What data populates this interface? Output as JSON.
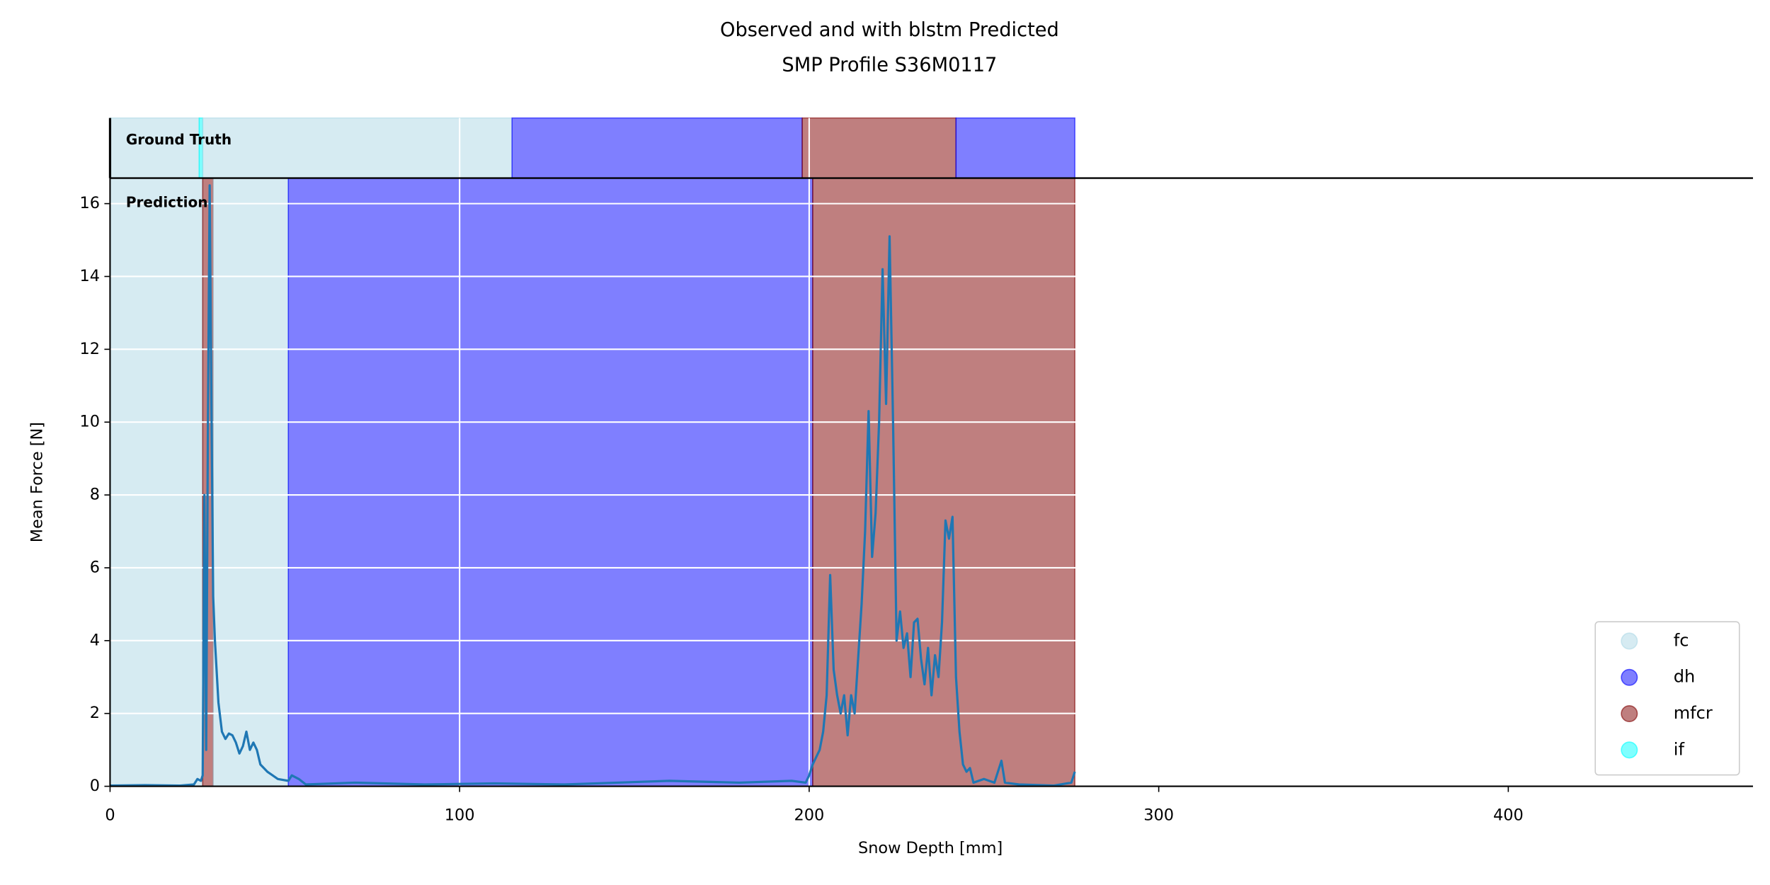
{
  "chart_data": {
    "type": "line",
    "title": [
      "Observed and with blstm Predicted",
      "SMP Profile S36M0117"
    ],
    "x_label": "Snow Depth [mm]",
    "y_label": "Mean Force [N]",
    "xlim": [
      0,
      470
    ],
    "xticks": [
      0,
      100,
      200,
      300,
      400
    ],
    "ylim": [
      0,
      16.7
    ],
    "yticks": [
      0,
      2,
      4,
      6,
      8,
      10,
      12,
      14,
      16
    ],
    "grid": true,
    "color": "#1f77b4",
    "alpha": 0.5,
    "x": [
      0,
      10,
      20,
      24,
      25,
      26,
      26.5,
      27,
      27.5,
      28,
      28.5,
      29,
      29.5,
      30,
      31,
      32,
      33,
      34,
      35,
      36,
      37,
      38,
      39,
      40,
      41,
      42,
      43,
      45,
      48,
      51,
      52,
      54,
      56,
      70,
      90,
      110,
      130,
      160,
      180,
      195,
      199,
      200,
      201,
      202,
      203,
      204,
      205,
      206,
      207,
      208,
      209,
      210,
      211,
      212,
      213,
      214,
      215,
      216,
      217,
      218,
      219,
      220,
      221,
      222,
      223,
      224,
      225,
      226,
      227,
      228,
      229,
      230,
      231,
      232,
      233,
      234,
      235,
      236,
      237,
      238,
      239,
      240,
      241,
      242,
      243,
      244,
      245,
      246,
      247,
      250,
      253,
      255,
      256,
      260,
      270,
      275,
      276
    ],
    "values": [
      0.02,
      0.03,
      0.02,
      0.05,
      0.2,
      0.15,
      0.3,
      8,
      1,
      10,
      16.5,
      10.5,
      5.2,
      4,
      2.3,
      1.5,
      1.3,
      1.45,
      1.4,
      1.2,
      0.9,
      1.1,
      1.5,
      1.0,
      1.2,
      1.0,
      0.6,
      0.4,
      0.2,
      0.15,
      0.3,
      0.2,
      0.05,
      0.1,
      0.05,
      0.08,
      0.05,
      0.15,
      0.1,
      0.15,
      0.1,
      0.3,
      0.6,
      0.8,
      1.0,
      1.5,
      2.5,
      5.8,
      3.2,
      2.5,
      2,
      2.5,
      1.4,
      2.5,
      2,
      3.5,
      5,
      7,
      10.3,
      6.3,
      7.5,
      10,
      14.2,
      10.5,
      15.1,
      10,
      4,
      4.8,
      3.8,
      4.2,
      3,
      4.5,
      4.6,
      3.5,
      2.8,
      3.8,
      2.5,
      3.6,
      3.0,
      4.5,
      7.3,
      6.8,
      7.4,
      3,
      1.5,
      0.6,
      0.4,
      0.5,
      0.1,
      0.2,
      0.1,
      0.7,
      0.1,
      0.05,
      0.02,
      0.1,
      0.4
    ],
    "ground_truth": {
      "label": "Ground Truth",
      "segments": [
        {
          "class": "fc",
          "start": 0,
          "end": 25.5
        },
        {
          "class": "if",
          "start": 25.5,
          "end": 26.5
        },
        {
          "class": "fc",
          "start": 26.5,
          "end": 115
        },
        {
          "class": "dh",
          "start": 115,
          "end": 198
        },
        {
          "class": "mfcr",
          "start": 198,
          "end": 242
        },
        {
          "class": "dh",
          "start": 242,
          "end": 276
        }
      ]
    },
    "prediction": {
      "label": "Prediction",
      "segments": [
        {
          "class": "fc",
          "start": 0,
          "end": 26.5
        },
        {
          "class": "mfcr",
          "start": 26.5,
          "end": 29.5
        },
        {
          "class": "fc",
          "start": 29.5,
          "end": 51
        },
        {
          "class": "dh",
          "start": 51,
          "end": 201
        },
        {
          "class": "mfcr",
          "start": 201,
          "end": 276
        }
      ]
    },
    "legend": {
      "position": "lower right",
      "entries": [
        {
          "name": "fc",
          "color": "#add8e6"
        },
        {
          "name": "dh",
          "color": "#0000ff"
        },
        {
          "name": "mfcr",
          "color": "#800000"
        },
        {
          "name": "if",
          "color": "#00ffff"
        }
      ]
    }
  }
}
